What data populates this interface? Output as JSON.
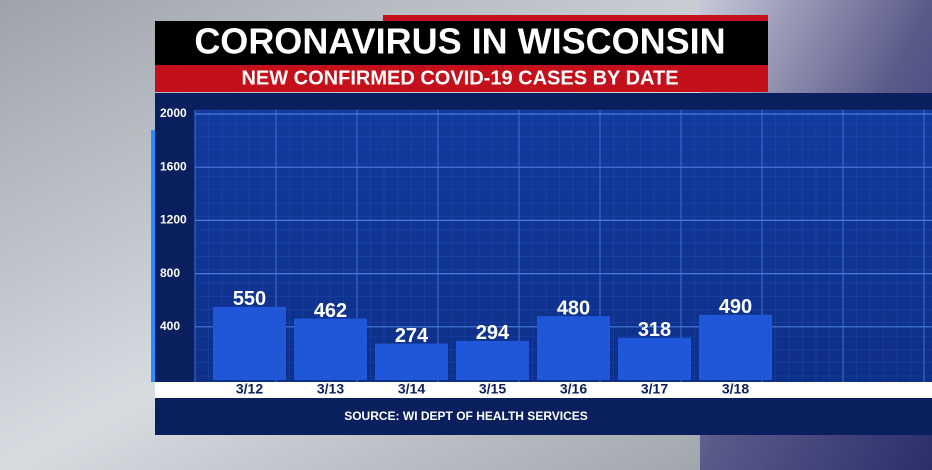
{
  "chart_data": {
    "type": "bar",
    "title": "CORONAVIRUS IN WISCONSIN",
    "subtitle": "NEW CONFIRMED COVID-19 CASES BY DATE",
    "categories": [
      "3/12",
      "3/13",
      "3/14",
      "3/15",
      "3/16",
      "3/17",
      "3/18"
    ],
    "values": [
      550,
      462,
      274,
      294,
      480,
      318,
      490
    ],
    "color": "#1f57d8",
    "ylim": [
      0,
      2000
    ],
    "yticks": [
      400,
      800,
      1200,
      1600,
      2000
    ],
    "grid": true,
    "source": "SOURCE: WI DEPT OF HEALTH SERVICES"
  }
}
